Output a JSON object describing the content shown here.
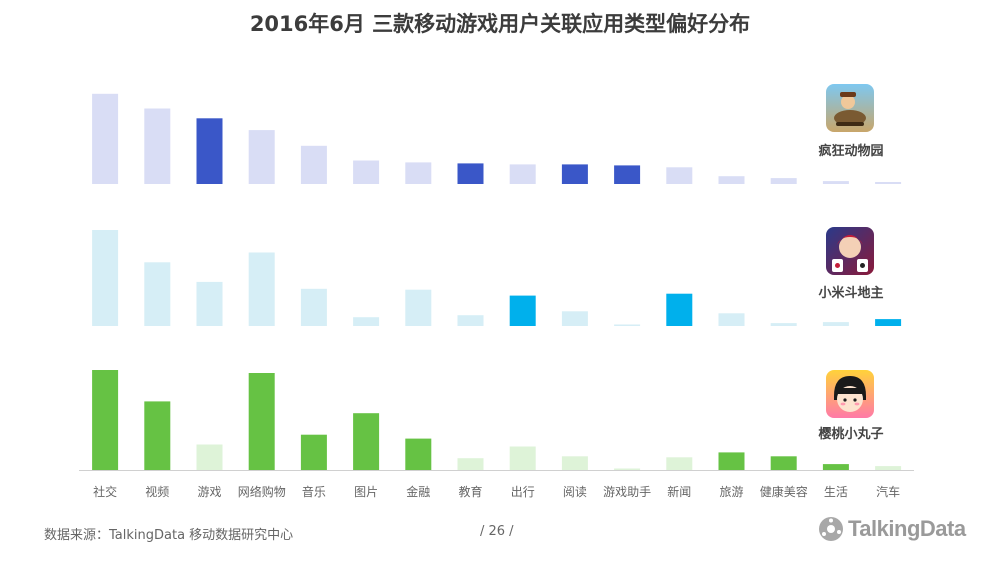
{
  "title": "2016年6月 三款移动游戏用户关联应用类型偏好分布",
  "footer": {
    "source": "数据来源：TalkingData  移动数据研究中心",
    "page": "/  26  /",
    "brand": "TalkingData",
    "brand_icon": "talkingdata-logo-icon"
  },
  "chart_data": {
    "type": "bar",
    "categories": [
      "社交",
      "视频",
      "游戏",
      "网络购物",
      "音乐",
      "图片",
      "金融",
      "教育",
      "出行",
      "阅读",
      "游戏助手",
      "新闻",
      "旅游",
      "健康美容",
      "生活",
      "汽车"
    ],
    "panels": [
      {
        "name": "疯狂动物园",
        "icon": "crazy-zoo-app-icon",
        "light_color": "#d9ddf5",
        "dark_color": "#3a57c8",
        "values": [
          92,
          77,
          67,
          55,
          39,
          24,
          22,
          21,
          20,
          20,
          19,
          17,
          8,
          6,
          3,
          2
        ],
        "highlighted": [
          false,
          false,
          true,
          false,
          false,
          false,
          false,
          true,
          false,
          true,
          true,
          false,
          false,
          false,
          false,
          false
        ]
      },
      {
        "name": "小米斗地主",
        "icon": "xiaomi-doudizhu-app-icon",
        "light_color": "#d6eef6",
        "dark_color": "#00b0ec",
        "values": [
          98,
          65,
          45,
          75,
          38,
          9,
          37,
          11,
          31,
          15,
          1,
          33,
          13,
          3,
          4,
          7
        ],
        "highlighted": [
          false,
          false,
          false,
          false,
          false,
          false,
          false,
          false,
          true,
          false,
          false,
          true,
          false,
          false,
          false,
          true
        ]
      },
      {
        "name": "樱桃小丸子",
        "icon": "chibi-maruko-app-icon",
        "light_color": "#def3d8",
        "dark_color": "#66c244",
        "values": [
          102,
          70,
          26,
          99,
          36,
          58,
          32,
          12,
          24,
          14,
          1,
          13,
          18,
          14,
          6,
          4
        ],
        "highlighted": [
          true,
          true,
          false,
          true,
          true,
          true,
          true,
          false,
          false,
          false,
          false,
          false,
          true,
          true,
          true,
          false
        ]
      }
    ]
  }
}
